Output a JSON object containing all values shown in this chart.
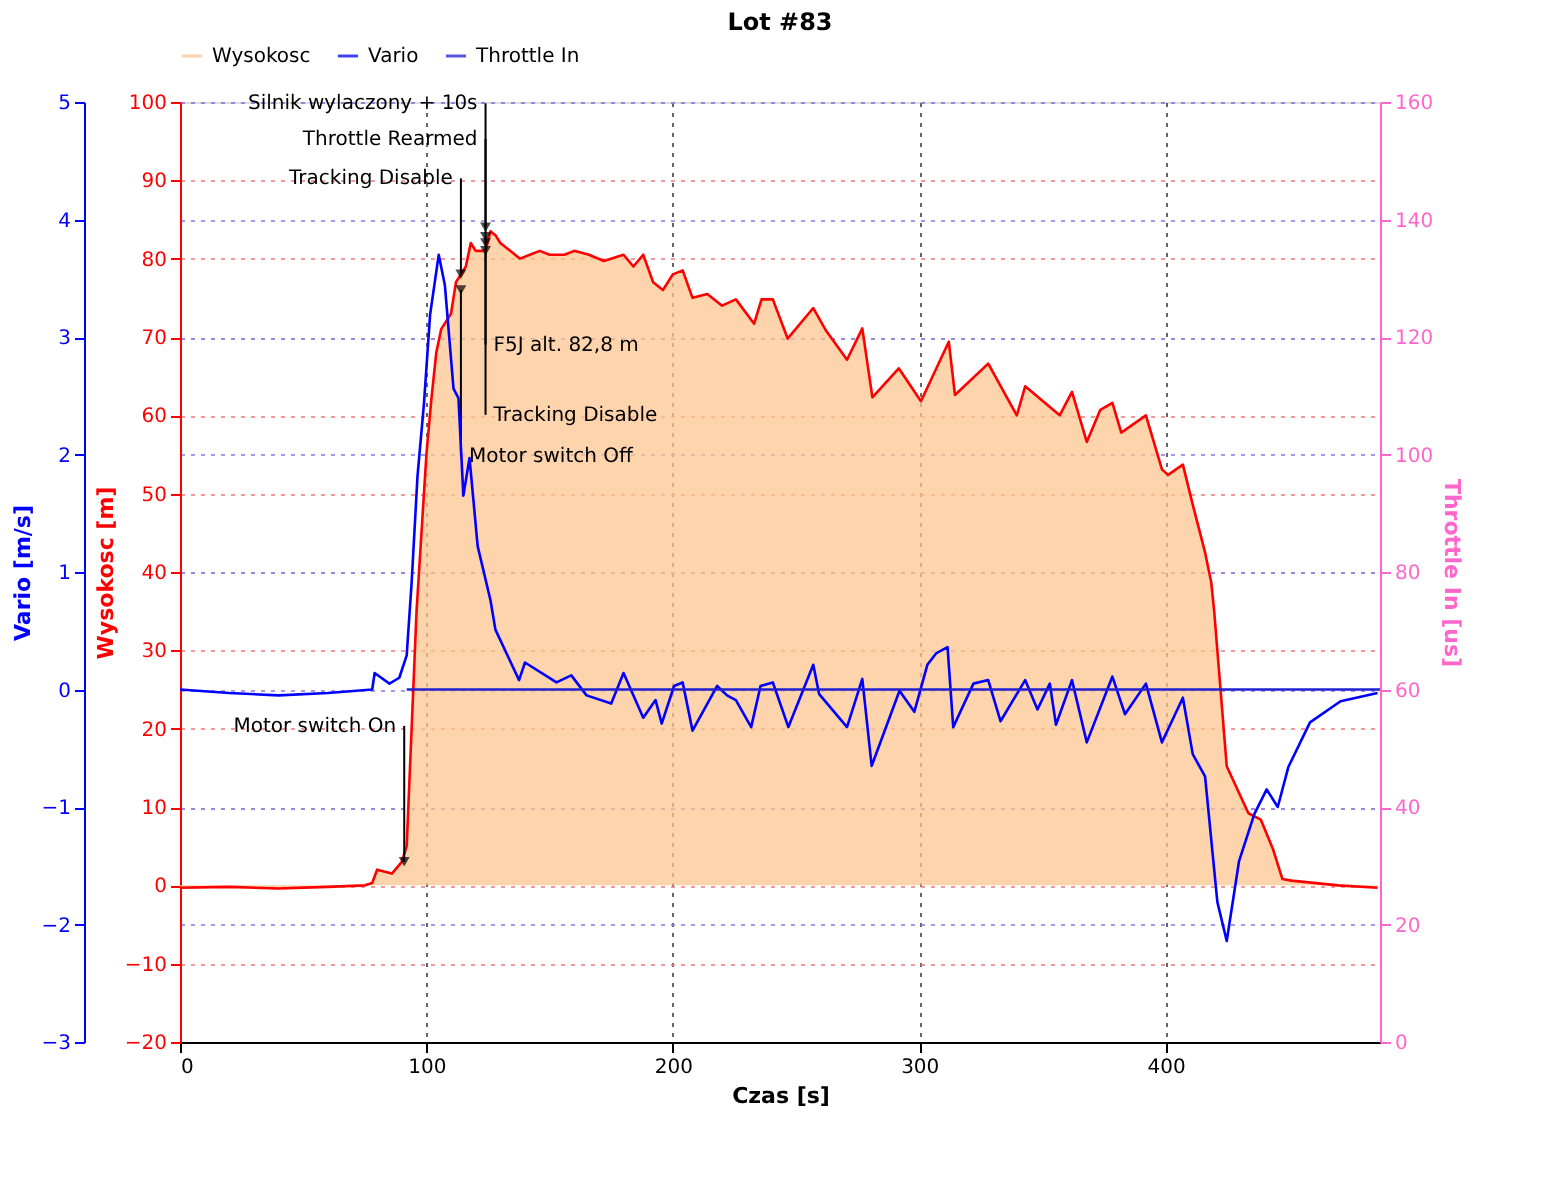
{
  "chart_data": {
    "type": "line",
    "title": "Lot #83",
    "xlabel": "Czas [s]",
    "ylabel": "Wysokosc [m]",
    "y2label": "Vario [m/s]",
    "y3label": "Throttle In [us]",
    "xlim": [
      0,
      487
    ],
    "xticks": [
      0,
      100,
      200,
      300,
      400
    ],
    "ylim": [
      -20,
      100
    ],
    "yticks": [
      -20,
      -10,
      0,
      10,
      20,
      30,
      40,
      50,
      60,
      70,
      80,
      90,
      100
    ],
    "y2lim": [
      -3,
      5
    ],
    "y2ticks": [
      -3,
      -2,
      -1,
      0,
      1,
      2,
      3,
      4,
      5
    ],
    "y3lim": [
      0,
      160
    ],
    "y3ticks": [
      0,
      20,
      40,
      60,
      80,
      100,
      120,
      140,
      160
    ],
    "grid": true,
    "legend": "top left",
    "series": [
      {
        "name": "Wysokosc",
        "type": "area",
        "color": "#fcc590",
        "x": [
          0,
          20,
          40,
          60,
          75,
          78,
          80,
          86,
          90,
          92,
          94,
          96,
          98,
          100,
          102,
          104,
          106,
          108,
          110,
          112,
          114,
          116,
          118,
          120,
          122,
          124,
          126,
          128,
          130,
          134,
          138,
          142,
          146,
          150,
          156,
          160,
          166,
          172,
          180,
          184,
          188,
          192,
          196,
          200,
          204,
          208,
          214,
          220,
          225.6,
          233,
          236,
          240.6,
          246.6,
          257,
          262,
          270.7,
          276.9,
          281,
          291.7,
          300.7,
          312,
          314.5,
          328,
          339.6,
          343,
          357,
          362,
          368,
          373.5,
          378.4,
          382,
          392,
          398.5,
          401,
          407,
          411,
          416,
          418.5,
          419.7,
          424.8,
          433.6,
          438.6,
          443.6,
          447.4,
          451,
          470,
          486
        ],
        "values": [
          -0.3,
          -0.2,
          -0.4,
          -0.2,
          0,
          0.3,
          2,
          1.5,
          3,
          5,
          20,
          35,
          45,
          55,
          62,
          68,
          71,
          72,
          73,
          77,
          78,
          79,
          82,
          81,
          81,
          81,
          83.5,
          83,
          82,
          81,
          80,
          80.5,
          81,
          80.5,
          80.5,
          81,
          80.5,
          79.7,
          80.5,
          79,
          80.5,
          77,
          76,
          78,
          78.5,
          75,
          75.5,
          74,
          74.8,
          71.7,
          74.8,
          74.8,
          69.8,
          73.7,
          70.9,
          67.1,
          71.1,
          62.3,
          66,
          61.8,
          69.4,
          62.6,
          66.6,
          60,
          63.7,
          60,
          63,
          56.6,
          60.7,
          61.6,
          57.8,
          60,
          53.1,
          52.4,
          53.7,
          48.6,
          42.5,
          38.7,
          35,
          15.2,
          9.2,
          8.4,
          4.6,
          0.8,
          0.6,
          0,
          -0.3
        ]
      },
      {
        "name": "Vario",
        "axis": "y2",
        "color": "#0000ff",
        "x": [
          0,
          20,
          40,
          60,
          78,
          79,
          85,
          89,
          92,
          94,
          96.4,
          99,
          101.5,
          105,
          107.5,
          111,
          113,
          115,
          117.5,
          120.8,
          126,
          128,
          137.6,
          140,
          152.8,
          158.8,
          165,
          175,
          180,
          188,
          193,
          195.5,
          200.5,
          204,
          208,
          218,
          222,
          225.6,
          231.8,
          235.6,
          240.6,
          246.9,
          257,
          259.4,
          270.7,
          276.9,
          280.7,
          292,
          298,
          303.3,
          307,
          311.5,
          313.8,
          322,
          328,
          333,
          343,
          348,
          353,
          355.5,
          362,
          368,
          378.4,
          383.5,
          392,
          398.5,
          407,
          411,
          416,
          421,
          424.8,
          429.8,
          436,
          441,
          445.5,
          449.8,
          458.6,
          471,
          486
        ],
        "values": [
          0,
          -0.03,
          -0.05,
          -0.03,
          0,
          0.14,
          0.05,
          0.1,
          0.29,
          0.91,
          1.82,
          2.43,
          3.19,
          3.7,
          3.44,
          2.56,
          2.48,
          1.65,
          1.97,
          1.22,
          0.76,
          0.51,
          0.08,
          0.23,
          0.06,
          0.12,
          -0.05,
          -0.12,
          0.14,
          -0.24,
          -0.09,
          -0.29,
          0.03,
          0.06,
          -0.35,
          0.03,
          -0.05,
          -0.09,
          -0.32,
          0.03,
          0.06,
          -0.32,
          0.21,
          -0.04,
          -0.32,
          0.09,
          -0.65,
          -0.01,
          -0.19,
          0.21,
          0.31,
          0.36,
          -0.32,
          0.05,
          0.08,
          -0.27,
          0.08,
          -0.17,
          0.05,
          -0.3,
          0.08,
          -0.45,
          0.11,
          -0.21,
          0.05,
          -0.45,
          -0.07,
          -0.55,
          -0.74,
          -1.81,
          -2.14,
          -1.46,
          -1.06,
          -0.85,
          -1.0,
          -0.66,
          -0.28,
          -0.1,
          -0.03
        ]
      },
      {
        "name": "Throttle In",
        "axis": "y3",
        "color": "#2020d0",
        "x": [
          92,
          487
        ],
        "values": [
          60,
          60
        ]
      }
    ],
    "annotations": [
      {
        "text": "Silnik wylaczony + 10s",
        "x": 124,
        "y": 84
      },
      {
        "text": "Throttle Rearmed",
        "x": 124,
        "y": 82
      },
      {
        "text": "Tracking Disable",
        "x": 114,
        "y": 78
      },
      {
        "text": "F5J alt. 82,8 m",
        "x": 124,
        "y": 82.8
      },
      {
        "text": "Tracking Disable",
        "x": 124,
        "y": 81
      },
      {
        "text": "Motor switch Off",
        "x": 114,
        "y": 76
      },
      {
        "text": "Motor switch On",
        "x": 91,
        "y": 3
      }
    ]
  }
}
